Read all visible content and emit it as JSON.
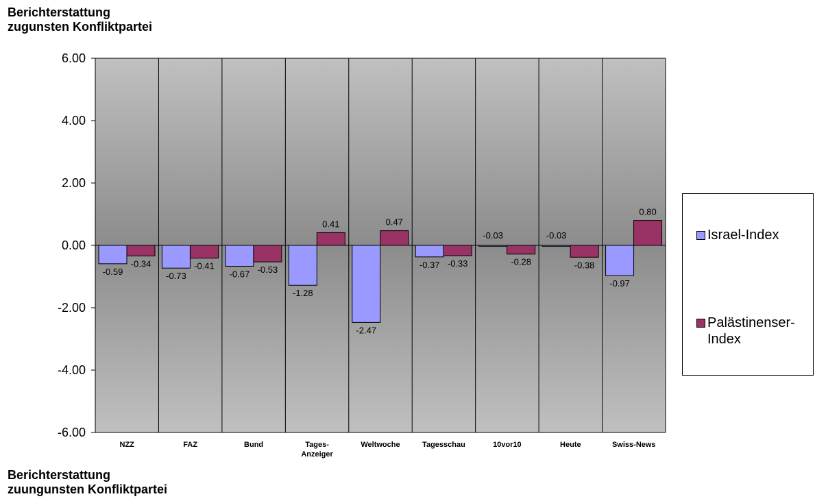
{
  "top_label": [
    "Berichterstattung",
    "zugunsten Konfliktpartei"
  ],
  "bottom_label": [
    "Berichterstattung",
    "zuungunsten Konfliktpartei"
  ],
  "chart_data": {
    "type": "bar",
    "categories": [
      "NZZ",
      "FAZ",
      "Bund",
      "Tages-\nAnzeiger",
      "Weltwoche",
      "Tagesschau",
      "10vor10",
      "Heute",
      "Swiss-News"
    ],
    "series": [
      {
        "name": "Israel-Index",
        "values": [
          -0.59,
          -0.73,
          -0.67,
          -1.28,
          -2.47,
          -0.37,
          -0.03,
          -0.03,
          -0.97
        ],
        "color": "#9999ff"
      },
      {
        "name": "Palästinenser-Index",
        "values": [
          -0.34,
          -0.41,
          -0.53,
          0.41,
          0.47,
          -0.33,
          -0.28,
          -0.38,
          0.8
        ],
        "color": "#993366"
      }
    ],
    "data_labels": [
      [
        "-0.59",
        "-0.73",
        "-0.67",
        "-1.28",
        "-2.47",
        "-0.37",
        "-0.03",
        "-0.03",
        "-0.97"
      ],
      [
        "-0.34",
        "-0.41",
        "-0.53",
        "0.41",
        "0.47",
        "-0.33",
        "-0.28",
        "-0.38",
        "0.80"
      ]
    ],
    "y_ticks": [
      "6.00",
      "4.00",
      "2.00",
      "0.00",
      "-2.00",
      "-4.00",
      "-6.00"
    ],
    "ylim": [
      -6,
      6
    ],
    "grid": false,
    "legend_position": "right",
    "plot_background": "gradient-gray"
  }
}
